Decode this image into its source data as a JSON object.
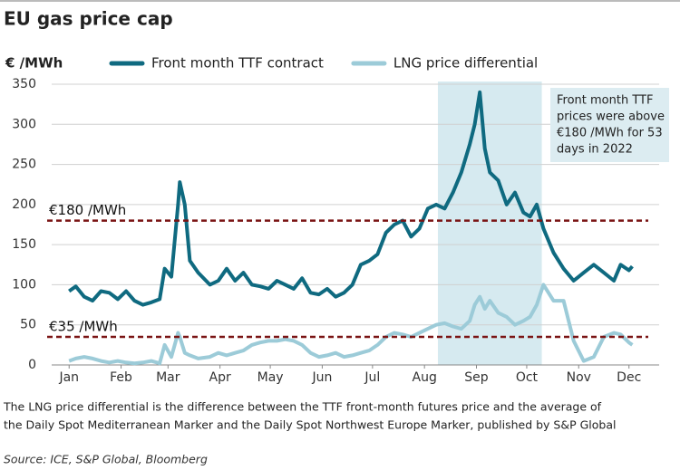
{
  "chart_data": {
    "type": "line",
    "title": "EU gas price cap",
    "y_label": "€ /MWh",
    "x": [
      1,
      5,
      10,
      15,
      20,
      25,
      30,
      35,
      40,
      45,
      50,
      55,
      58,
      62,
      66,
      67,
      70,
      73,
      78,
      85,
      90,
      95,
      100,
      105,
      110,
      115,
      120,
      125,
      130,
      135,
      140,
      145,
      150,
      155,
      160,
      165,
      170,
      175,
      180,
      185,
      190,
      195,
      200,
      205,
      210,
      215,
      220,
      225,
      230,
      235,
      240,
      243,
      246,
      249,
      252,
      257,
      262,
      267,
      272,
      276,
      280,
      284,
      290,
      296,
      302,
      308,
      314,
      320,
      326,
      330,
      335,
      337
    ],
    "series": [
      {
        "name": "Front month TTF contract",
        "color": "#0f6a80",
        "values": [
          92,
          98,
          85,
          80,
          92,
          90,
          82,
          92,
          80,
          75,
          78,
          82,
          120,
          110,
          200,
          228,
          200,
          130,
          115,
          100,
          105,
          120,
          105,
          115,
          100,
          98,
          95,
          105,
          100,
          95,
          108,
          90,
          88,
          95,
          85,
          90,
          100,
          125,
          130,
          138,
          165,
          175,
          180,
          160,
          170,
          195,
          200,
          195,
          215,
          240,
          275,
          300,
          340,
          270,
          240,
          230,
          200,
          215,
          190,
          185,
          200,
          170,
          140,
          120,
          105,
          115,
          125,
          115,
          105,
          125,
          118,
          123
        ]
      },
      {
        "name": "LNG price differential",
        "color": "#9ccbd8",
        "values": [
          5,
          8,
          10,
          8,
          5,
          3,
          5,
          3,
          2,
          3,
          5,
          2,
          25,
          10,
          40,
          35,
          15,
          12,
          8,
          10,
          15,
          12,
          15,
          18,
          25,
          28,
          30,
          30,
          32,
          30,
          25,
          15,
          10,
          12,
          15,
          10,
          12,
          15,
          18,
          25,
          35,
          40,
          38,
          35,
          40,
          45,
          50,
          52,
          48,
          45,
          55,
          75,
          85,
          70,
          80,
          65,
          60,
          50,
          55,
          60,
          75,
          100,
          80,
          80,
          30,
          5,
          10,
          35,
          40,
          38,
          28,
          25
        ]
      }
    ],
    "xlim": [
      -4,
      353
    ],
    "xticks": [
      {
        "value": 1,
        "label": "Jan"
      },
      {
        "value": 32,
        "label": "Feb"
      },
      {
        "value": 60,
        "label": "Mar"
      },
      {
        "value": 91,
        "label": "Apr"
      },
      {
        "value": 121,
        "label": "May"
      },
      {
        "value": 152,
        "label": "Jun"
      },
      {
        "value": 182,
        "label": "Jul"
      },
      {
        "value": 213,
        "label": "Aug"
      },
      {
        "value": 244,
        "label": "Sep"
      },
      {
        "value": 274,
        "label": "Oct"
      },
      {
        "value": 305,
        "label": "Nov"
      },
      {
        "value": 335,
        "label": "Dec"
      }
    ],
    "ylim": [
      0,
      350
    ],
    "yticks": [
      0,
      50,
      100,
      150,
      200,
      250,
      300,
      350
    ],
    "grid": true,
    "highlight": [
      221,
      283
    ],
    "reference_lines": [
      {
        "value": 180,
        "label": "€180 /MWh",
        "color": "#7a1414"
      },
      {
        "value": 35,
        "label": "€35 /MWh",
        "color": "#7a1414"
      }
    ],
    "annotation": [
      "Front month TTF",
      "prices were above",
      "€180 /MWh for 53",
      "days in 2022"
    ],
    "footnote": [
      "The LNG price differential is the difference between the TTF front-month futures price and the average of",
      "the Daily Spot Mediterranean Marker and the Daily Spot Northwest Europe Marker, published by S&P Global"
    ],
    "source": "Source: ICE, S&P Global, Bloomberg"
  }
}
